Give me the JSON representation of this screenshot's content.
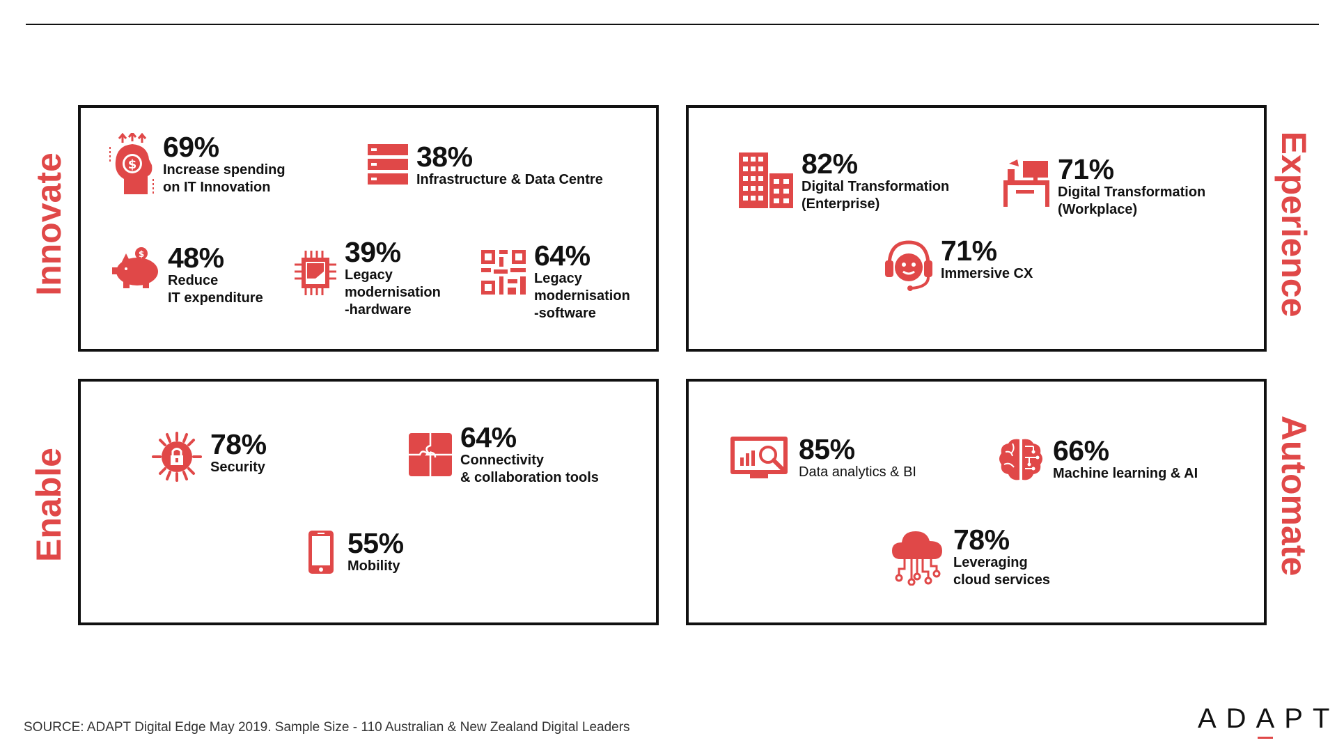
{
  "quadrants": {
    "innovate": {
      "title": "Innovate",
      "items": [
        {
          "pct": "69%",
          "label": "Increase spending\non IT Innovation",
          "icon": "head-dollar-growth-icon"
        },
        {
          "pct": "38%",
          "label": "Infrastructure & Data Centre",
          "icon": "server-rack-icon"
        },
        {
          "pct": "48%",
          "label": "Reduce\nIT expenditure",
          "icon": "piggy-bank-icon"
        },
        {
          "pct": "39%",
          "label": "Legacy\nmodernisation\n-hardware",
          "icon": "chip-icon"
        },
        {
          "pct": "64%",
          "label": "Legacy\nmodernisation\n-software",
          "icon": "qr-code-icon"
        }
      ]
    },
    "experience": {
      "title": "Experience",
      "items": [
        {
          "pct": "82%",
          "label": "Digital Transformation\n(Enterprise)",
          "icon": "office-buildings-icon"
        },
        {
          "pct": "71%",
          "label": "Digital Transformation\n(Workplace)",
          "icon": "desk-workplace-icon"
        },
        {
          "pct": "71%",
          "label": "Immersive CX",
          "icon": "headset-agent-icon"
        }
      ]
    },
    "enable": {
      "title": "Enable",
      "items": [
        {
          "pct": "78%",
          "label": "Security",
          "icon": "security-chip-lock-icon"
        },
        {
          "pct": "64%",
          "label": "Connectivity\n& collaboration tools",
          "icon": "puzzle-icon"
        },
        {
          "pct": "55%",
          "label": "Mobility",
          "icon": "smartphone-icon"
        }
      ]
    },
    "automate": {
      "title": "Automate",
      "items": [
        {
          "pct": "85%",
          "label": "Data analytics & BI",
          "icon": "analytics-monitor-icon"
        },
        {
          "pct": "66%",
          "label": "Machine learning & AI",
          "icon": "brain-circuit-icon"
        },
        {
          "pct": "78%",
          "label": "Leveraging\ncloud services",
          "icon": "cloud-network-icon"
        }
      ]
    }
  },
  "footer": {
    "source": "SOURCE: ADAPT Digital Edge May 2019. Sample Size - 110 Australian & New Zealand Digital Leaders",
    "logo_left": "AD",
    "logo_a": "A",
    "logo_right": "PT"
  },
  "colors": {
    "accent": "#e04848",
    "text": "#111111",
    "border": "#111111"
  }
}
